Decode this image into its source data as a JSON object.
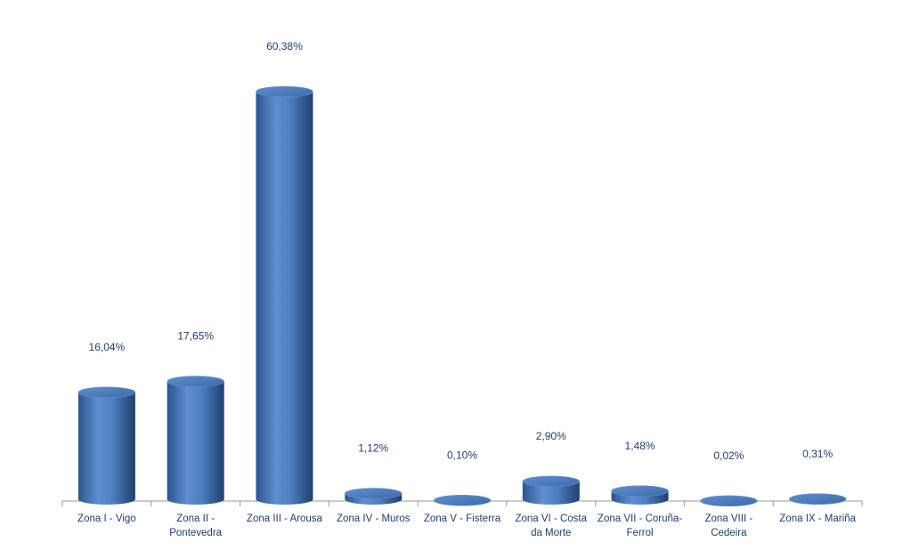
{
  "chart_data": {
    "type": "bar",
    "style": "cylinder",
    "color": "#4f81bd",
    "categories": [
      "Zona I - Vigo",
      "Zona II - Pontevedra",
      "Zona III - Arousa",
      "Zona IV - Muros",
      "Zona V - Fisterra",
      "Zona VI - Costa da Morte",
      "Zona VII - Coruña-Ferrol",
      "Zona VIII - Cedeira",
      "Zona IX - Mariña"
    ],
    "values": [
      16.04,
      17.65,
      60.38,
      1.12,
      0.1,
      2.9,
      1.48,
      0.02,
      0.31
    ],
    "value_labels": [
      "16,04%",
      "17,65%",
      "60,38%",
      "1,12%",
      "0,10%",
      "2,90%",
      "1,48%",
      "0,02%",
      "0,31%"
    ]
  }
}
